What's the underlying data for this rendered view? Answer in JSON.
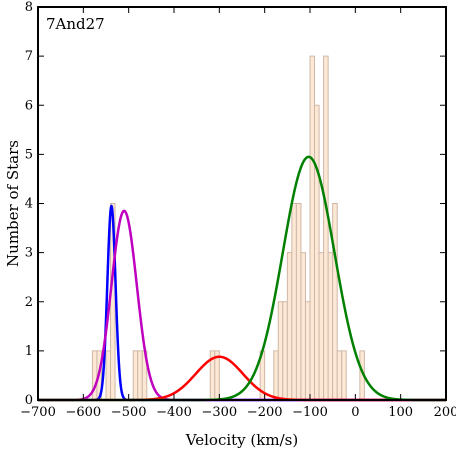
{
  "chart_data": {
    "type": "histogram",
    "annotation": "7And27",
    "xlabel": "Velocity (km/s)",
    "ylabel": "Number of Stars",
    "xlim": [
      -700,
      200
    ],
    "ylim": [
      0,
      8
    ],
    "xticks": [
      -700,
      -600,
      -500,
      -400,
      -300,
      -200,
      -100,
      0,
      100,
      200
    ],
    "xtick_labels": [
      "−700",
      "−600",
      "−500",
      "−400",
      "−300",
      "−200",
      "−100",
      "0",
      "100",
      "200"
    ],
    "yticks": [
      0,
      1,
      2,
      3,
      4,
      5,
      6,
      7,
      8
    ],
    "ytick_labels": [
      "0",
      "1",
      "2",
      "3",
      "4",
      "5",
      "6",
      "7",
      "8"
    ],
    "grid": false,
    "histogram": {
      "bin_width": 10,
      "bins": [
        {
          "x": -580,
          "count": 1
        },
        {
          "x": -570,
          "count": 1
        },
        {
          "x": -550,
          "count": 1
        },
        {
          "x": -540,
          "count": 4
        },
        {
          "x": -490,
          "count": 1
        },
        {
          "x": -480,
          "count": 1
        },
        {
          "x": -470,
          "count": 1
        },
        {
          "x": -320,
          "count": 1
        },
        {
          "x": -310,
          "count": 1
        },
        {
          "x": -210,
          "count": 1
        },
        {
          "x": -180,
          "count": 1
        },
        {
          "x": -170,
          "count": 2
        },
        {
          "x": -160,
          "count": 2
        },
        {
          "x": -150,
          "count": 3
        },
        {
          "x": -140,
          "count": 4
        },
        {
          "x": -130,
          "count": 4
        },
        {
          "x": -120,
          "count": 3
        },
        {
          "x": -110,
          "count": 2
        },
        {
          "x": -100,
          "count": 7
        },
        {
          "x": -90,
          "count": 6
        },
        {
          "x": -80,
          "count": 3
        },
        {
          "x": -70,
          "count": 7
        },
        {
          "x": -60,
          "count": 3
        },
        {
          "x": -50,
          "count": 4
        },
        {
          "x": -40,
          "count": 1
        },
        {
          "x": -30,
          "count": 1
        },
        {
          "x": 10,
          "count": 1
        }
      ],
      "fill": "#fde8d6",
      "edge": "#cfb7a6"
    },
    "series": [
      {
        "type": "gaussian",
        "mean": -538,
        "sigma": 9,
        "amplitude": 3.95,
        "color": "#0000ff"
      },
      {
        "type": "gaussian",
        "mean": -510,
        "sigma": 28,
        "amplitude": 3.85,
        "color": "#bf00bf"
      },
      {
        "type": "gaussian",
        "mean": -300,
        "sigma": 52,
        "amplitude": 0.88,
        "color": "#ff0000"
      },
      {
        "type": "gaussian",
        "mean": -103,
        "sigma": 57,
        "amplitude": 4.95,
        "color": "#008000"
      }
    ]
  }
}
